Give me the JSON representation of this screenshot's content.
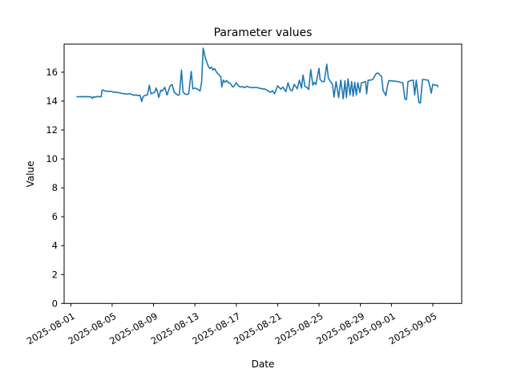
{
  "chart_data": {
    "type": "line",
    "title": "Parameter values",
    "xlabel": "Date",
    "ylabel": "Value",
    "line_color": "#1f77b4",
    "legend": "none",
    "grid": false,
    "x_unit": "days since 2025-08-01",
    "xlim_days": [
      -0.64,
      37.8
    ],
    "ylim": [
      0,
      17.94
    ],
    "y_ticks": [
      0,
      2,
      4,
      6,
      8,
      10,
      12,
      14,
      16
    ],
    "x_tick_days": [
      0,
      4,
      8,
      12,
      16,
      20,
      24,
      28,
      31,
      35
    ],
    "x_tick_labels": [
      "2025-08-01",
      "2025-08-05",
      "2025-08-09",
      "2025-08-13",
      "2025-08-17",
      "2025-08-21",
      "2025-08-25",
      "2025-08-29",
      "2025-09-01",
      "2025-09-05"
    ],
    "x_days": [
      0.6,
      1.0,
      1.4,
      1.8,
      2.0,
      2.1,
      2.2,
      2.4,
      2.5,
      2.8,
      2.95,
      3.0,
      3.1,
      3.3,
      3.6,
      3.9,
      4.1,
      4.4,
      4.7,
      5.0,
      5.3,
      5.5,
      5.7,
      5.9,
      6.1,
      6.3,
      6.5,
      6.7,
      6.85,
      7.0,
      7.2,
      7.4,
      7.6,
      7.75,
      7.9,
      8.1,
      8.25,
      8.4,
      8.5,
      8.7,
      8.85,
      9.1,
      9.3,
      9.6,
      9.8,
      10.0,
      10.2,
      10.35,
      10.5,
      10.7,
      10.85,
      11.0,
      11.2,
      11.4,
      11.65,
      11.8,
      12.0,
      12.2,
      12.5,
      12.65,
      12.8,
      13.0,
      13.1,
      13.3,
      13.45,
      13.6,
      13.75,
      13.9,
      14.05,
      14.2,
      14.35,
      14.5,
      14.6,
      14.75,
      14.9,
      15.05,
      15.2,
      15.35,
      15.5,
      15.65,
      15.8,
      16.0,
      16.2,
      16.4,
      16.6,
      16.8,
      17.0,
      17.3,
      17.6,
      17.9,
      18.2,
      18.5,
      18.8,
      19.1,
      19.3,
      19.5,
      19.7,
      20.0,
      20.3,
      20.5,
      20.8,
      21.0,
      21.2,
      21.4,
      21.6,
      21.9,
      22.1,
      22.3,
      22.45,
      22.65,
      22.8,
      23.0,
      23.2,
      23.4,
      23.55,
      23.7,
      24.0,
      24.1,
      24.3,
      24.5,
      24.75,
      24.9,
      25.1,
      25.3,
      25.45,
      25.65,
      25.9,
      26.1,
      26.35,
      26.5,
      26.65,
      26.8,
      27.0,
      27.15,
      27.3,
      27.45,
      27.6,
      27.75,
      27.95,
      28.1,
      28.3,
      28.5,
      28.6,
      28.75,
      29.0,
      29.2,
      29.5,
      29.7,
      29.9,
      30.05,
      30.2,
      30.35,
      30.45,
      30.6,
      30.75,
      31.0,
      31.3,
      31.6,
      31.9,
      32.1,
      32.3,
      32.45,
      32.6,
      32.9,
      33.1,
      33.25,
      33.4,
      33.65,
      33.8,
      34.0,
      34.3,
      34.55,
      34.7,
      34.85,
      35.0,
      35.2,
      35.4,
      35.5
    ],
    "values": [
      14.3,
      14.3,
      14.31,
      14.3,
      14.28,
      14.18,
      14.3,
      14.26,
      14.32,
      14.3,
      14.3,
      14.72,
      14.78,
      14.7,
      14.67,
      14.68,
      14.62,
      14.6,
      14.58,
      14.52,
      14.5,
      14.48,
      14.52,
      14.45,
      14.4,
      14.43,
      14.38,
      14.4,
      13.97,
      14.32,
      14.4,
      14.42,
      15.1,
      14.5,
      14.55,
      14.6,
      14.9,
      14.6,
      14.25,
      14.75,
      14.7,
      14.95,
      14.42,
      15.05,
      15.15,
      14.6,
      14.5,
      14.4,
      14.45,
      16.15,
      14.65,
      14.5,
      14.45,
      14.5,
      16.05,
      14.85,
      14.9,
      14.85,
      14.7,
      15.3,
      17.66,
      17.0,
      16.8,
      16.4,
      16.25,
      16.35,
      16.15,
      16.25,
      16.05,
      15.9,
      15.8,
      15.68,
      14.98,
      15.45,
      15.3,
      15.42,
      15.3,
      15.25,
      15.15,
      14.98,
      15.05,
      15.28,
      15.05,
      14.97,
      15.0,
      14.93,
      15.02,
      14.95,
      14.93,
      14.95,
      14.9,
      14.85,
      14.82,
      14.7,
      14.6,
      14.72,
      14.5,
      15.05,
      14.82,
      14.97,
      14.65,
      15.26,
      14.8,
      14.7,
      15.16,
      14.85,
      15.45,
      14.9,
      15.8,
      15.0,
      14.97,
      14.8,
      16.18,
      15.1,
      15.3,
      15.15,
      16.27,
      15.5,
      15.35,
      15.35,
      16.55,
      15.6,
      15.35,
      15.16,
      14.27,
      15.35,
      14.24,
      15.45,
      14.16,
      15.4,
      14.24,
      15.54,
      14.42,
      15.35,
      14.33,
      15.3,
      14.42,
      15.27,
      14.6,
      15.26,
      15.3,
      15.35,
      14.5,
      15.45,
      15.45,
      15.5,
      15.88,
      15.95,
      15.8,
      15.7,
      14.7,
      14.55,
      14.38,
      15.0,
      15.42,
      15.4,
      15.38,
      15.35,
      15.3,
      15.26,
      14.15,
      14.1,
      15.35,
      15.42,
      15.45,
      14.42,
      15.45,
      13.9,
      13.87,
      15.5,
      15.47,
      15.45,
      15.07,
      14.55,
      15.16,
      15.1,
      15.1,
      15.0
    ]
  }
}
